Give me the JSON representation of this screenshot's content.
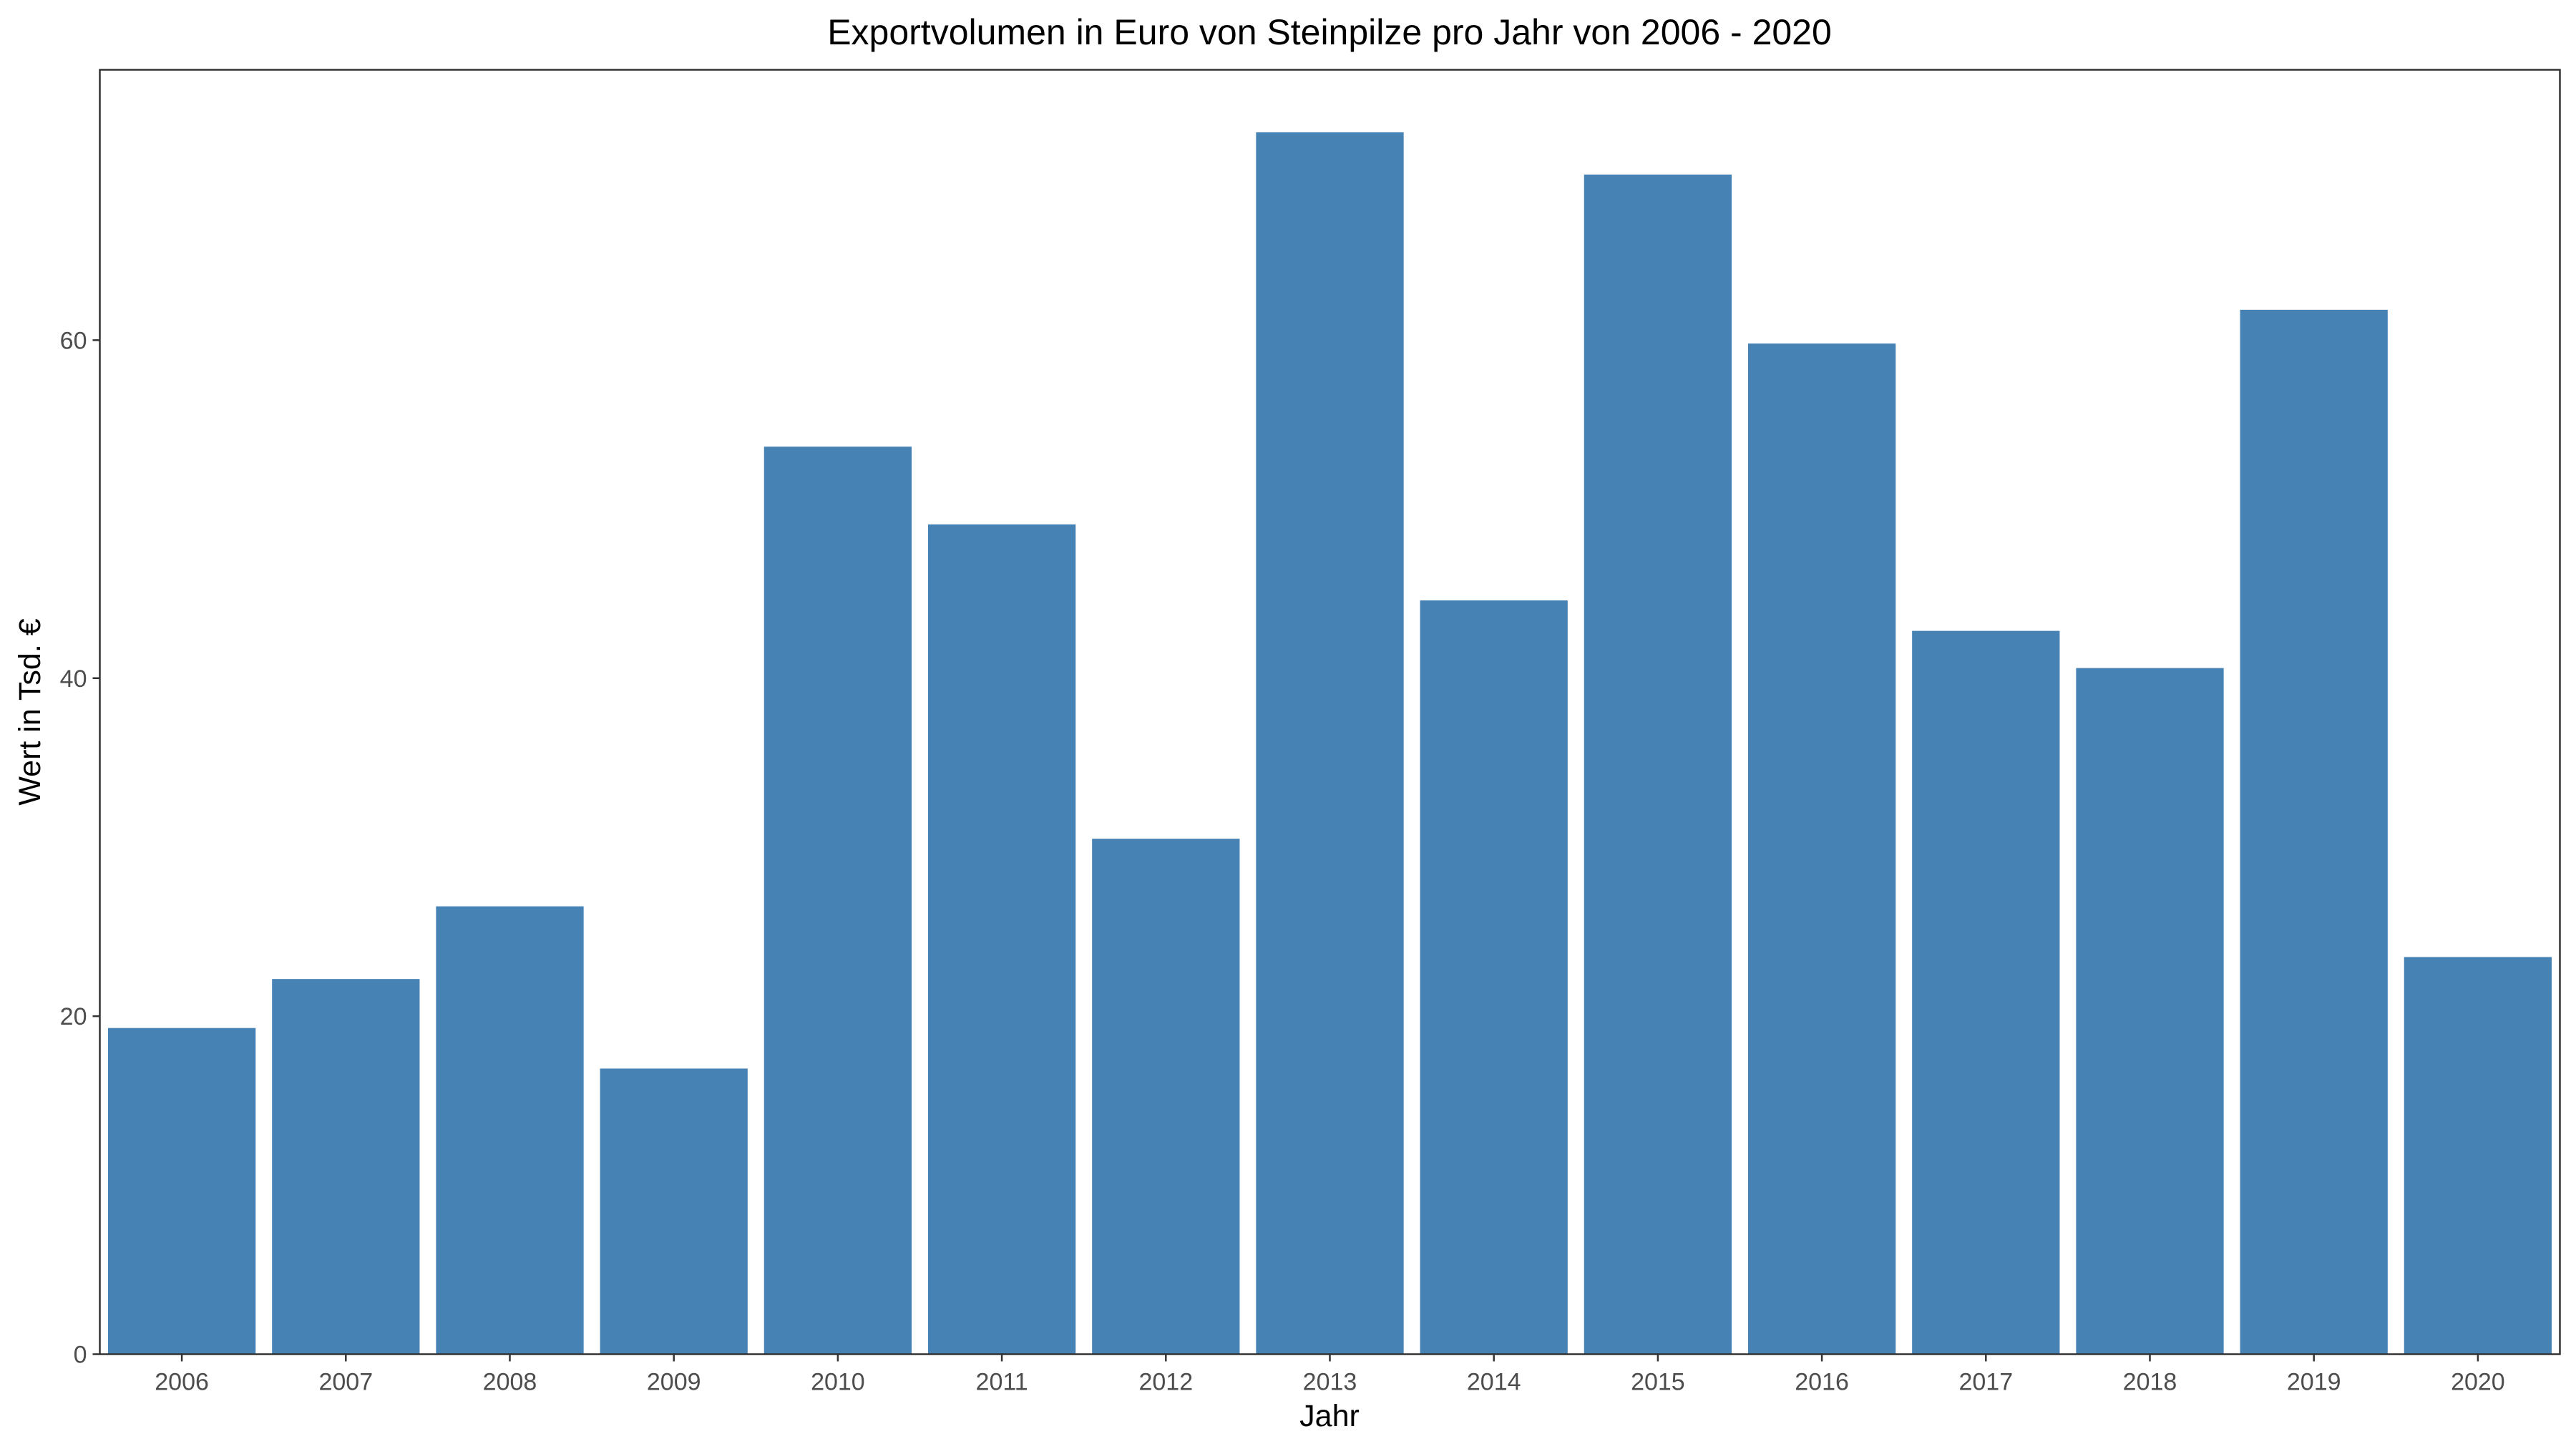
{
  "chart_data": {
    "type": "bar",
    "title": "Exportvolumen in Euro von Steinpilze pro Jahr von 2006 - 2020",
    "xlabel": "Jahr",
    "ylabel": "Wert in Tsd. €",
    "categories": [
      "2006",
      "2007",
      "2008",
      "2009",
      "2010",
      "2011",
      "2012",
      "2013",
      "2014",
      "2015",
      "2016",
      "2017",
      "2018",
      "2019",
      "2020"
    ],
    "values": [
      19.3,
      22.2,
      26.5,
      16.9,
      53.7,
      49.1,
      30.5,
      72.3,
      44.6,
      69.8,
      59.8,
      42.8,
      40.6,
      61.8,
      23.5
    ],
    "ylim": [
      0,
      76
    ],
    "yticks": [
      0,
      20,
      40,
      60
    ],
    "ytick_labels": [
      "0",
      "20",
      "40",
      "60"
    ],
    "bar_color": "#4682B4",
    "grid": false,
    "legend": "none"
  }
}
